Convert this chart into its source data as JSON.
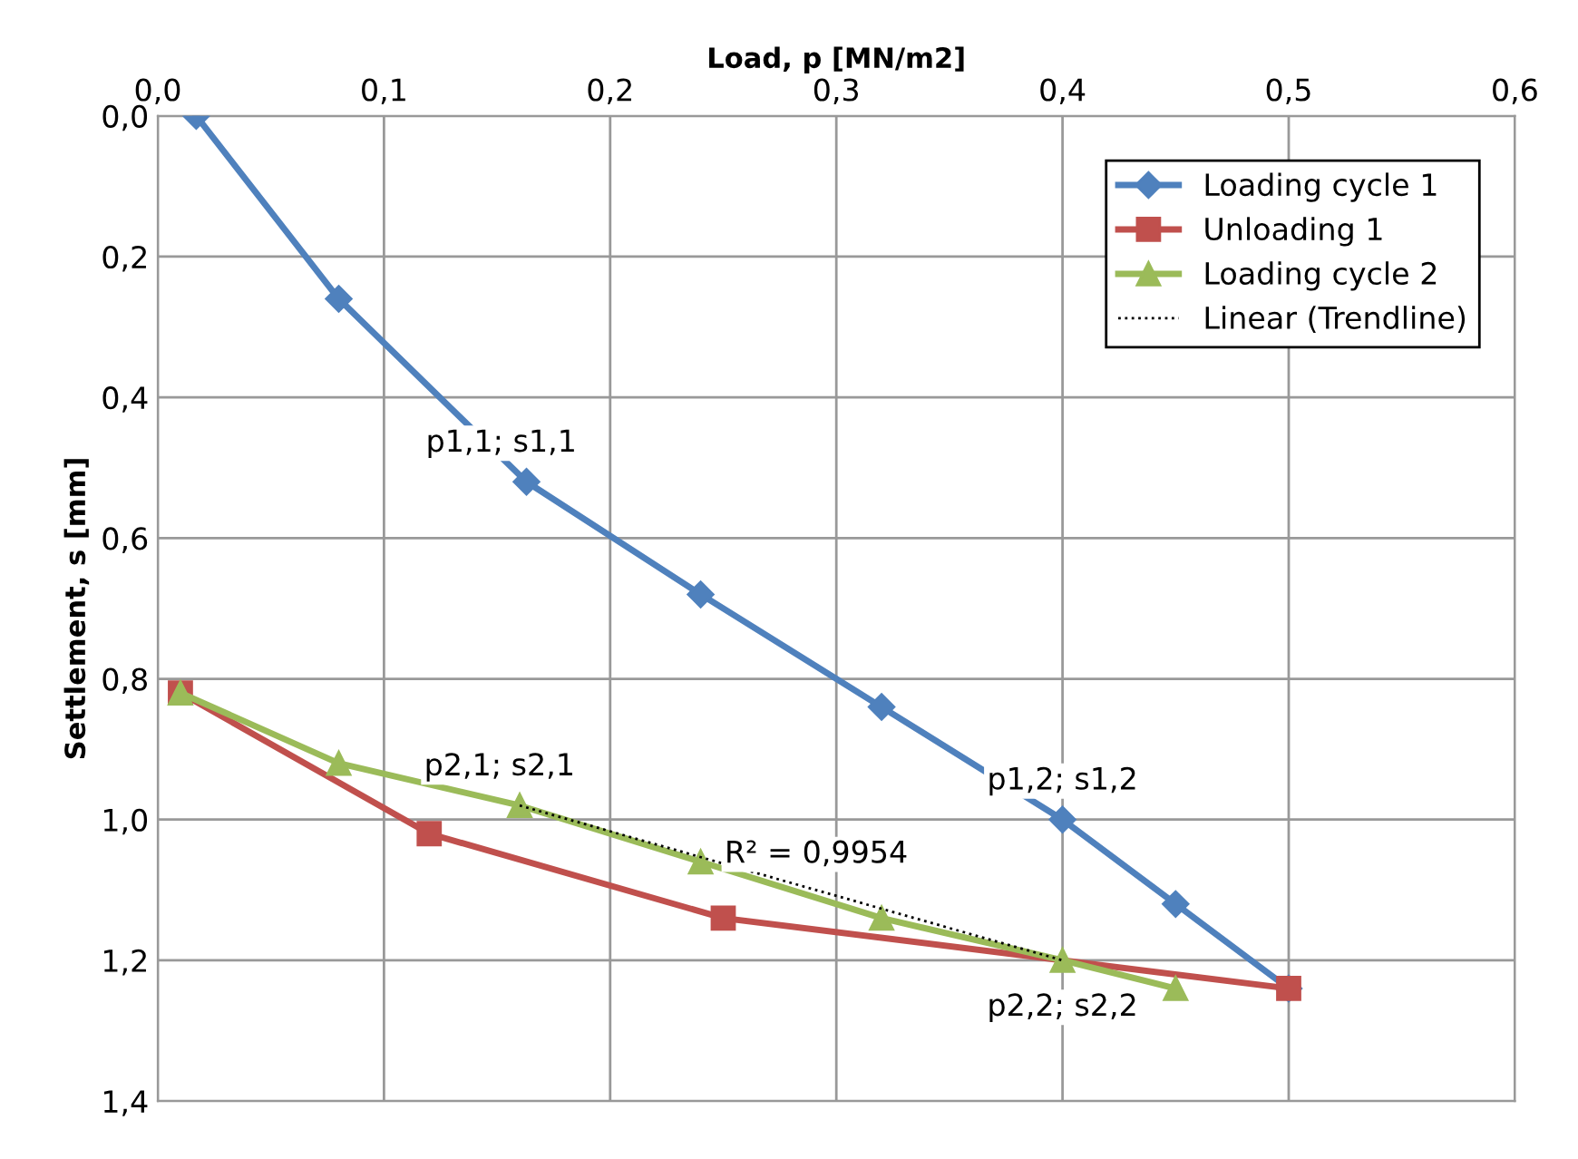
{
  "chart_data": {
    "type": "line",
    "xlabel": "Load, p [MN/m2]",
    "ylabel": "Settlement, s [mm]",
    "xlim": [
      0,
      0.6
    ],
    "xticks": [
      {
        "value": 0,
        "label": "0,0"
      },
      {
        "value": 0.1,
        "label": "0,1"
      },
      {
        "value": 0.2,
        "label": "0,2"
      },
      {
        "value": 0.3,
        "label": "0,3"
      },
      {
        "value": 0.4,
        "label": "0,4"
      },
      {
        "value": 0.5,
        "label": "0,5"
      },
      {
        "value": 0.6,
        "label": "0,6"
      }
    ],
    "ylim": [
      1.4,
      0
    ],
    "yticks": [
      {
        "value": 0,
        "label": "0,0"
      },
      {
        "value": 0.2,
        "label": "0,2"
      },
      {
        "value": 0.4,
        "label": "0,4"
      },
      {
        "value": 0.6,
        "label": "0,6"
      },
      {
        "value": 0.8,
        "label": "0,8"
      },
      {
        "value": 1.0,
        "label": "1,0"
      },
      {
        "value": 1.2,
        "label": "1,2"
      },
      {
        "value": 1.4,
        "label": "1,4"
      }
    ],
    "grid": true,
    "legend": "top right",
    "series": [
      {
        "name": "Loading cycle 1",
        "color": "#4f81bd",
        "marker": "diamond",
        "line_style": "solid",
        "x": [
          0.017,
          0.08,
          0.163,
          0.24,
          0.32,
          0.4,
          0.45,
          0.5
        ],
        "values": [
          0,
          0.26,
          0.52,
          0.68,
          0.84,
          1.0,
          1.12,
          1.24
        ]
      },
      {
        "name": "Unloading 1",
        "color": "#c0504d",
        "marker": "square",
        "line_style": "solid",
        "x": [
          0.01,
          0.12,
          0.25,
          0.5
        ],
        "values": [
          0.82,
          1.02,
          1.14,
          1.24
        ]
      },
      {
        "name": "Loading cycle 2",
        "color": "#9bbb59",
        "marker": "triangle",
        "line_style": "solid",
        "x": [
          0.01,
          0.08,
          0.16,
          0.24,
          0.32,
          0.4,
          0.45
        ],
        "values": [
          0.82,
          0.92,
          0.98,
          1.06,
          1.14,
          1.2,
          1.24
        ]
      },
      {
        "name": "Linear (Trendline)",
        "color": "#000000",
        "marker": "none",
        "line_style": "dotted",
        "x": [
          0.16,
          0.4
        ],
        "values": [
          0.98,
          1.2
        ]
      }
    ],
    "annotations": [
      {
        "text": "p1,1; s1,1",
        "x": 0.163,
        "y": 0.52
      },
      {
        "text": "p1,2; s1,2",
        "x": 0.4,
        "y": 1.0
      },
      {
        "text": "p2,1; s2,1",
        "x": 0.16,
        "y": 0.98
      },
      {
        "text": "p2,2; s2,2",
        "x": 0.4,
        "y": 1.2
      },
      {
        "text": "R² = 0,9954",
        "x": 0.28,
        "y": 1.09
      }
    ]
  }
}
